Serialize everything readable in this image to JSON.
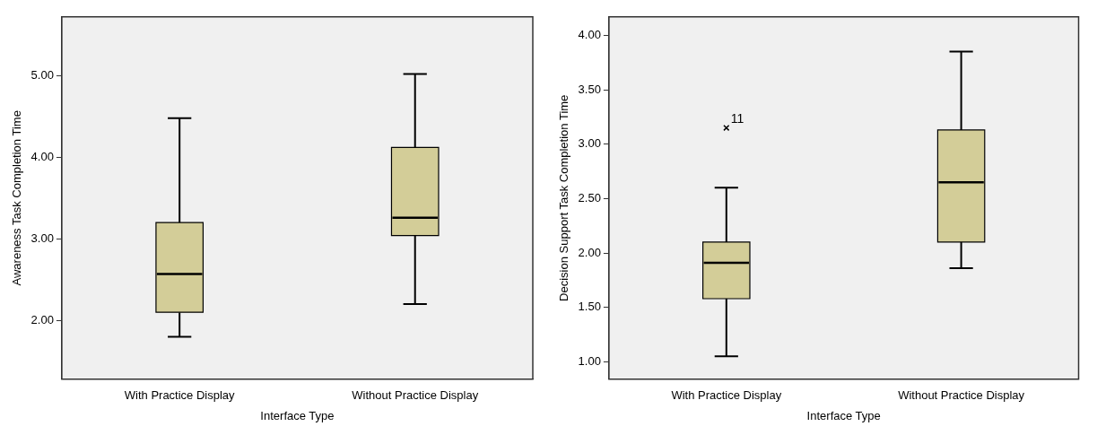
{
  "chart_data": [
    {
      "type": "box",
      "xlabel": "Interface Type",
      "ylabel": "Awareness Task Completion Time",
      "categories": [
        "With Practice Display",
        "Without Practice Display"
      ],
      "color": "#d3cd98",
      "grid": false,
      "legend": false,
      "boxes": [
        {
          "low": 1.8,
          "q1": 2.1,
          "median": 2.57,
          "q3": 3.2,
          "high": 4.48
        },
        {
          "low": 2.2,
          "q1": 3.04,
          "median": 3.26,
          "q3": 4.12,
          "high": 5.02
        }
      ],
      "ylim": [
        1.28,
        5.72
      ],
      "yticks": [
        {
          "value": 2,
          "label": "2.00"
        },
        {
          "value": 3,
          "label": "3.00"
        },
        {
          "value": 4,
          "label": "4.00"
        },
        {
          "value": 5,
          "label": "5.00"
        }
      ]
    },
    {
      "type": "box",
      "xlabel": "Interface Type",
      "ylabel": "Decision Support Task Completion Time",
      "categories": [
        "With Practice Display",
        "Without Practice Display"
      ],
      "color": "#d3cd98",
      "grid": false,
      "legend": false,
      "boxes": [
        {
          "low": 1.05,
          "q1": 1.58,
          "median": 1.91,
          "q3": 2.1,
          "high": 2.6,
          "outliers": [
            3.15
          ]
        },
        {
          "low": 1.86,
          "q1": 2.1,
          "median": 2.65,
          "q3": 3.13,
          "high": 3.85
        }
      ],
      "annotations": [
        "11"
      ],
      "ylim": [
        0.84,
        4.17
      ],
      "yticks": [
        {
          "value": 1,
          "label": "1.00"
        },
        {
          "value": 1.5,
          "label": "1.50"
        },
        {
          "value": 2,
          "label": "2.00"
        },
        {
          "value": 2.5,
          "label": "2.50"
        },
        {
          "value": 3,
          "label": "3.00"
        },
        {
          "value": 3.5,
          "label": "3.50"
        },
        {
          "value": 4,
          "label": "4.00"
        }
      ]
    }
  ]
}
